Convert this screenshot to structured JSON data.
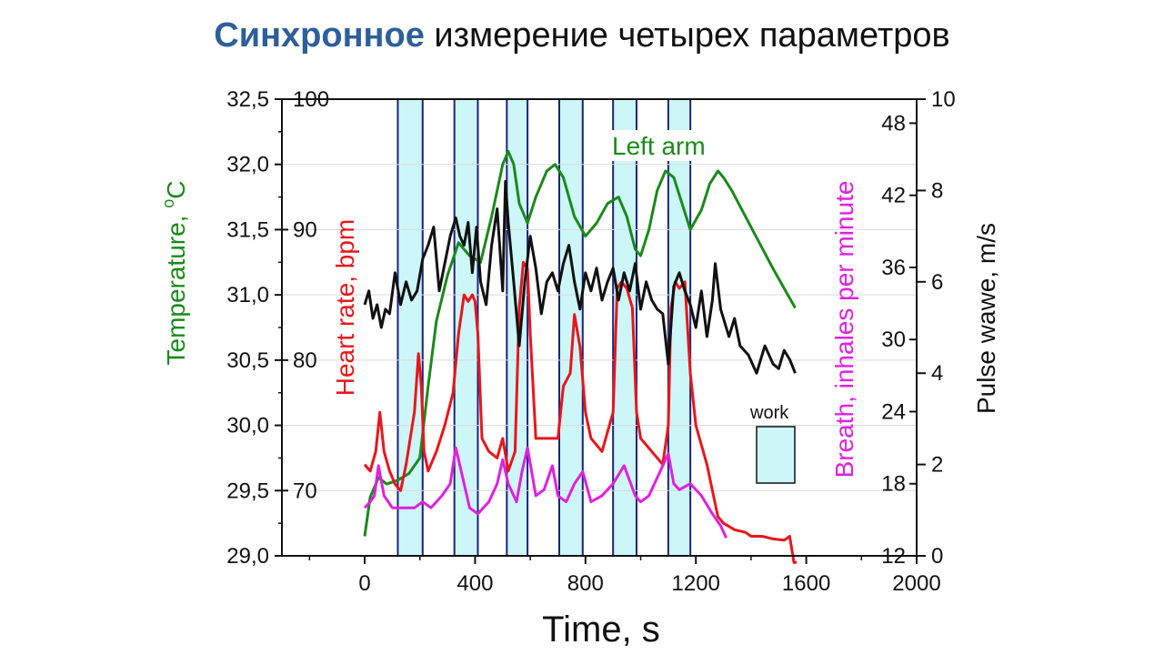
{
  "title": {
    "highlight": "Синхронное",
    "rest": " измерение четырех параметров"
  },
  "colors": {
    "temperature": "#1a8a1a",
    "heart": "#e8161b",
    "breath": "#e020e0",
    "pulse": "#111111",
    "work_fill": "#cdf6f8",
    "work_edge": "#1a237e",
    "title_hl": "#2e5f9a"
  },
  "chart_data": {
    "type": "line",
    "xlabel": "Time, s",
    "x_ticks": [
      "0",
      "400",
      "800",
      "1200",
      "1600",
      "2000"
    ],
    "xlim": [
      -300,
      2000
    ],
    "axes": {
      "temperature": {
        "label": "Temperature, ",
        "label_sup": "o",
        "label_unit": "C",
        "ticks": [
          "29,0",
          "29,5",
          "30,0",
          "30,5",
          "31,0",
          "31,5",
          "32,0",
          "32,5"
        ],
        "ylim": [
          29.0,
          32.5
        ]
      },
      "heart_rate": {
        "label": "Heart rate, bpm",
        "ticks": [
          "70",
          "80",
          "90",
          "100"
        ],
        "tick_values": [
          70,
          80,
          90,
          100
        ],
        "ylim": [
          65.0,
          100
        ]
      },
      "breath": {
        "label": "Breath, inhales per minute",
        "ticks": [
          "12",
          "18",
          "24",
          "30",
          "36",
          "42",
          "48"
        ],
        "ylim": [
          12,
          50
        ]
      },
      "pulse_wave": {
        "label": "Pulse wawe, m/s",
        "ticks": [
          "0",
          "2",
          "4",
          "6",
          "8",
          "10"
        ],
        "ylim": [
          0,
          10
        ]
      }
    },
    "work_intervals": [
      [
        120,
        210
      ],
      [
        325,
        410
      ],
      [
        515,
        590
      ],
      [
        705,
        790
      ],
      [
        900,
        985
      ],
      [
        1100,
        1180
      ]
    ],
    "legend": {
      "label": "work",
      "placement": "right"
    },
    "annotations": [
      {
        "text": "Left arm",
        "series": "temperature"
      }
    ],
    "series": [
      {
        "name": "Temperature (Left arm)",
        "axis": "temperature",
        "x": [
          0,
          20,
          50,
          80,
          120,
          160,
          200,
          230,
          260,
          300,
          340,
          380,
          420,
          460,
          500,
          520,
          540,
          560,
          590,
          620,
          660,
          690,
          720,
          760,
          800,
          840,
          880,
          920,
          950,
          980,
          1000,
          1030,
          1060,
          1090,
          1120,
          1150,
          1180,
          1220,
          1250,
          1280,
          1300,
          1330,
          1380,
          1430,
          1480,
          1520,
          1560
        ],
        "y": [
          29.15,
          29.45,
          29.6,
          29.55,
          29.58,
          29.63,
          29.75,
          30.3,
          30.8,
          31.15,
          31.4,
          31.3,
          31.25,
          31.6,
          32.0,
          32.1,
          32.0,
          31.7,
          31.55,
          31.75,
          31.95,
          32.0,
          31.9,
          31.6,
          31.45,
          31.55,
          31.7,
          31.75,
          31.6,
          31.35,
          31.3,
          31.5,
          31.8,
          31.95,
          31.9,
          31.7,
          31.5,
          31.65,
          31.85,
          31.95,
          31.9,
          31.8,
          31.6,
          31.4,
          31.2,
          31.05,
          30.9
        ]
      },
      {
        "name": "Heart rate",
        "axis": "heart_rate",
        "x": [
          0,
          20,
          40,
          55,
          70,
          90,
          110,
          130,
          150,
          165,
          180,
          195,
          205,
          215,
          230,
          260,
          290,
          320,
          340,
          360,
          375,
          390,
          400,
          410,
          425,
          450,
          480,
          500,
          520,
          545,
          560,
          575,
          590,
          600,
          620,
          660,
          700,
          720,
          745,
          760,
          780,
          800,
          820,
          860,
          900,
          915,
          930,
          950,
          970,
          985,
          1000,
          1040,
          1080,
          1100,
          1110,
          1125,
          1140,
          1160,
          1180,
          1200,
          1240,
          1260,
          1280,
          1300,
          1340,
          1380,
          1400,
          1440,
          1480,
          1520,
          1540,
          1555,
          1565
        ],
        "y": [
          72,
          71.5,
          73,
          76,
          73,
          71.5,
          70.5,
          70,
          72,
          74,
          76,
          80.5,
          78,
          73,
          71.5,
          73,
          75,
          77.5,
          82,
          85,
          84.5,
          85,
          84.5,
          82,
          74,
          73,
          72.5,
          74,
          71.5,
          73,
          84,
          87.5,
          87,
          82,
          74,
          74,
          74,
          78,
          79,
          83.5,
          81,
          76,
          74,
          73,
          76,
          85.5,
          86,
          85.5,
          84,
          76,
          74,
          73,
          72,
          75,
          84,
          86,
          85.5,
          86,
          79,
          75,
          72,
          70,
          68,
          67.5,
          67,
          66.8,
          66.5,
          66.5,
          66.3,
          66.2,
          66.5,
          64.5,
          64.5
        ]
      },
      {
        "name": "Breath",
        "axis": "breath",
        "x": [
          0,
          20,
          35,
          50,
          70,
          100,
          140,
          180,
          210,
          240,
          260,
          280,
          310,
          330,
          350,
          380,
          410,
          430,
          450,
          480,
          500,
          520,
          550,
          570,
          590,
          620,
          650,
          680,
          700,
          730,
          760,
          790,
          820,
          860,
          900,
          940,
          980,
          1000,
          1030,
          1060,
          1100,
          1120,
          1140,
          1180,
          1220,
          1260,
          1290,
          1310
        ],
        "y": [
          16,
          16.5,
          17,
          19.5,
          17,
          16,
          16,
          16,
          16.5,
          16,
          16.5,
          17,
          18,
          21,
          19,
          16,
          15.5,
          16,
          16.5,
          18,
          20,
          18,
          16.5,
          19,
          21,
          17,
          17.5,
          19.5,
          17,
          16.5,
          18,
          19,
          16.5,
          17,
          18,
          19.5,
          17,
          16.5,
          17,
          18.5,
          20.5,
          18,
          17.5,
          18,
          17,
          15.5,
          14.5,
          13.5
        ]
      },
      {
        "name": "Pulse wave",
        "axis": "pulse_wave",
        "x": [
          0,
          15,
          30,
          45,
          60,
          75,
          90,
          110,
          130,
          150,
          170,
          190,
          210,
          230,
          250,
          270,
          290,
          310,
          330,
          345,
          360,
          375,
          390,
          405,
          420,
          440,
          460,
          480,
          500,
          510,
          520,
          540,
          560,
          580,
          600,
          620,
          640,
          660,
          680,
          700,
          720,
          740,
          760,
          780,
          800,
          820,
          840,
          860,
          880,
          900,
          920,
          940,
          960,
          980,
          1000,
          1020,
          1040,
          1060,
          1080,
          1100,
          1120,
          1140,
          1160,
          1180,
          1200,
          1220,
          1240,
          1260,
          1270,
          1290,
          1320,
          1340,
          1360,
          1390,
          1420,
          1450,
          1480,
          1500,
          1520,
          1540,
          1560
        ],
        "y": [
          5.5,
          5.8,
          5.2,
          5.5,
          5.0,
          5.4,
          5.3,
          6.2,
          5.5,
          6.0,
          5.6,
          5.8,
          6.5,
          6.8,
          7.2,
          5.8,
          6.4,
          7.0,
          7.4,
          7.0,
          6.8,
          7.3,
          6.2,
          7.2,
          6.0,
          5.5,
          6.8,
          7.6,
          5.8,
          8.2,
          7.3,
          6.0,
          4.6,
          6.0,
          7.0,
          6.3,
          5.3,
          6.0,
          6.2,
          5.8,
          6.4,
          6.8,
          6.0,
          5.4,
          6.2,
          5.8,
          6.3,
          5.6,
          6.0,
          6.3,
          5.6,
          6.2,
          5.8,
          6.4,
          5.4,
          6.0,
          5.6,
          5.4,
          5.3,
          4.2,
          5.9,
          6.2,
          5.8,
          5.5,
          5.0,
          5.8,
          4.8,
          5.6,
          6.4,
          5.4,
          4.8,
          5.2,
          4.6,
          4.4,
          4.0,
          4.6,
          4.2,
          4.1,
          4.5,
          4.3,
          4.0
        ]
      }
    ]
  }
}
